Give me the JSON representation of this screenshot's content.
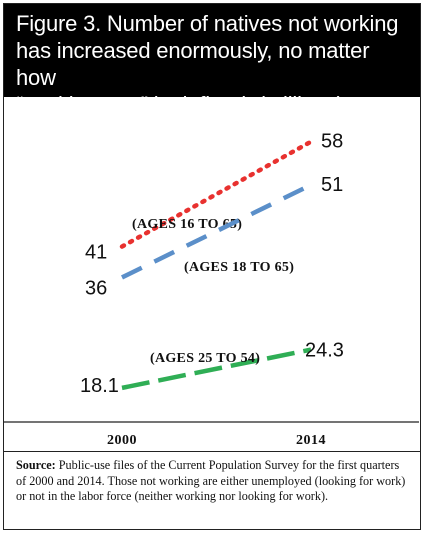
{
  "title": {
    "line1": "Figure 3. Number of natives not working",
    "line2": "has increased enormously, no matter how",
    "line3": "“working-age” is defined. (millions)"
  },
  "chart_data": {
    "type": "line",
    "categories": [
      "2000",
      "2014"
    ],
    "series": [
      {
        "name": "(AGES 16 TO 65)",
        "values": [
          41,
          58
        ],
        "color": "#e8312f",
        "dash": "dotted",
        "labels": [
          "41",
          "58"
        ]
      },
      {
        "name": "(AGES 18 TO 65)",
        "values": [
          36,
          51
        ],
        "color": "#5b8fc9",
        "dash": "dashed",
        "labels": [
          "36",
          "51"
        ]
      },
      {
        "name": "(AGES 25 TO 54)",
        "values": [
          18.1,
          24.3
        ],
        "color": "#2fae55",
        "dash": "dashed",
        "labels": [
          "18.1",
          "24.3"
        ]
      }
    ],
    "ylim": [
      15,
      62
    ],
    "grid": false
  },
  "source": {
    "label": "Source:",
    "text": "Public-use files of the Current Population Survey for the first quarters of 2000 and 2014. Those not working are either unemployed (looking for work) or not in the labor force (neither working nor looking for work)."
  }
}
